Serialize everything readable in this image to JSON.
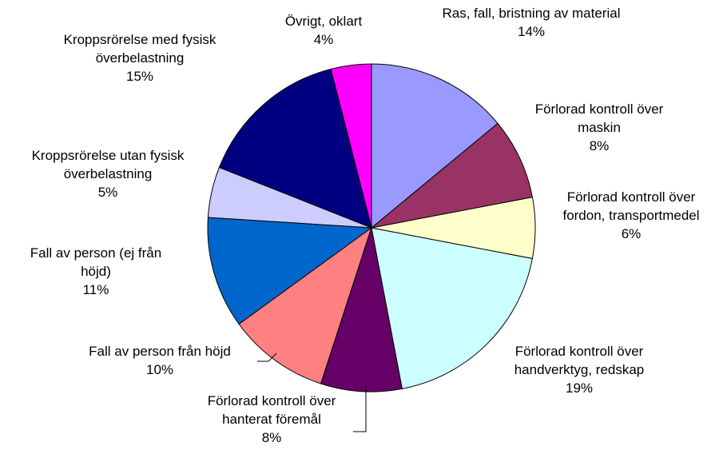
{
  "chart_data": {
    "type": "pie",
    "categories": [
      "Ras, fall, bristning av material",
      "Förlorad kontroll över maskin",
      "Förlorad kontroll över fordon, transportmedel",
      "Förlorad kontroll över handverktyg, redskap",
      "Förlorad kontroll över hanterat föremål",
      "Fall av person från höjd",
      "Fall av person (ej från höjd)",
      "Kroppsrörelse utan fysisk överbelastning",
      "Kroppsrörelse med fysisk överbelastning",
      "Övrigt, oklart"
    ],
    "values": [
      14,
      8,
      6,
      19,
      8,
      10,
      11,
      5,
      15,
      4
    ],
    "value_labels": [
      "14%",
      "8%",
      "6%",
      "19%",
      "8%",
      "10%",
      "11%",
      "5%",
      "15%",
      "4%"
    ],
    "colors": [
      "#9999ff",
      "#993366",
      "#ffffcc",
      "#ccffff",
      "#660066",
      "#ff8080",
      "#0066cc",
      "#ccccff",
      "#000080",
      "#ff00ff"
    ]
  }
}
